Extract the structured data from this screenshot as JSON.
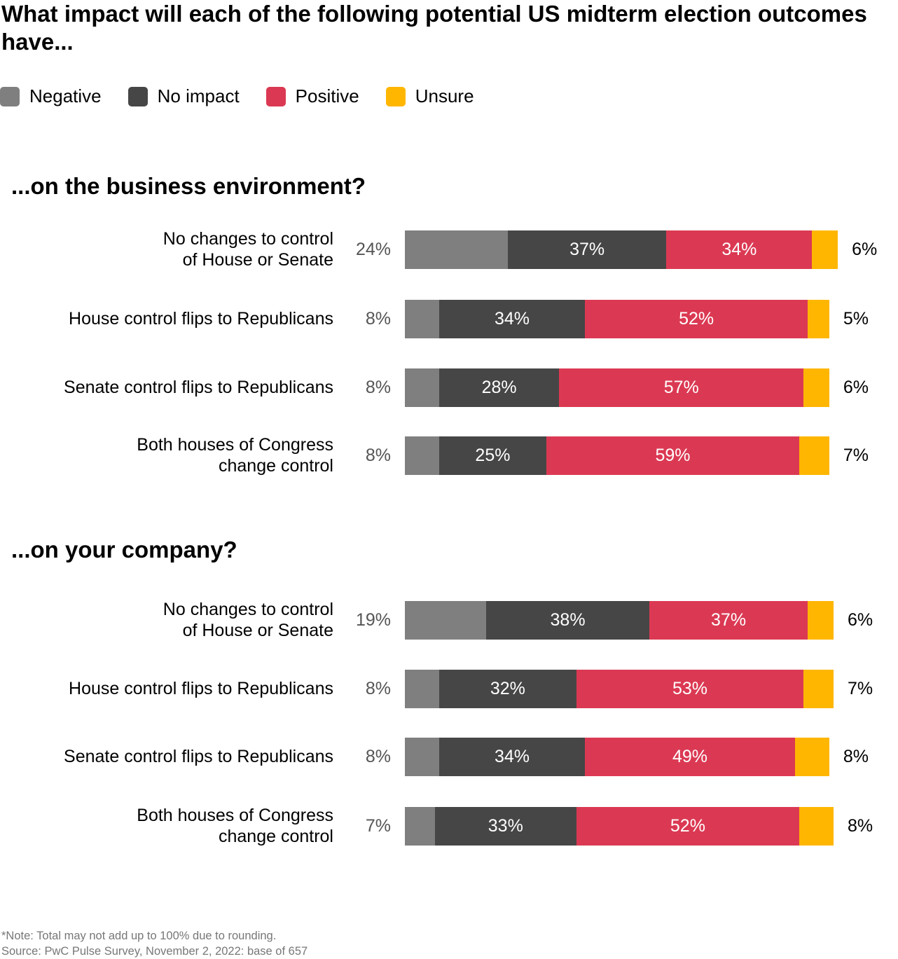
{
  "title": "What impact will each of the following potential US midterm election outcomes have...",
  "legend": [
    {
      "label": "Negative",
      "color": "#7f7f7f"
    },
    {
      "label": "No impact",
      "color": "#464646"
    },
    {
      "label": "Positive",
      "color": "#db3953"
    },
    {
      "label": "Unsure",
      "color": "#ffb600"
    }
  ],
  "chart_data": [
    {
      "type": "bar",
      "stacked": true,
      "orientation": "horizontal",
      "title": "...on the business environment?",
      "categories": [
        "No changes to control\nof House or Senate",
        "House control flips to Republicans",
        "Senate control flips to Republicans",
        "Both houses of Congress\nchange control"
      ],
      "series": [
        {
          "name": "Negative",
          "values": [
            24,
            8,
            8,
            8
          ]
        },
        {
          "name": "No impact",
          "values": [
            37,
            34,
            28,
            25
          ]
        },
        {
          "name": "Positive",
          "values": [
            34,
            52,
            57,
            59
          ]
        },
        {
          "name": "Unsure",
          "values": [
            6,
            5,
            6,
            7
          ]
        }
      ]
    },
    {
      "type": "bar",
      "stacked": true,
      "orientation": "horizontal",
      "title": "...on your company?",
      "categories": [
        "No changes to control\nof House or Senate",
        "House control flips to Republicans",
        "Senate control flips to Republicans",
        "Both houses of Congress\nchange control"
      ],
      "series": [
        {
          "name": "Negative",
          "values": [
            19,
            8,
            8,
            7
          ]
        },
        {
          "name": "No impact",
          "values": [
            38,
            32,
            34,
            33
          ]
        },
        {
          "name": "Positive",
          "values": [
            37,
            53,
            49,
            52
          ]
        },
        {
          "name": "Unsure",
          "values": [
            6,
            7,
            8,
            8
          ]
        }
      ]
    }
  ],
  "footer": {
    "note": "*Note: Total may not add up to 100% due to rounding.",
    "source": "Source: PwC Pulse Survey, November 2, 2022: base of 657"
  }
}
